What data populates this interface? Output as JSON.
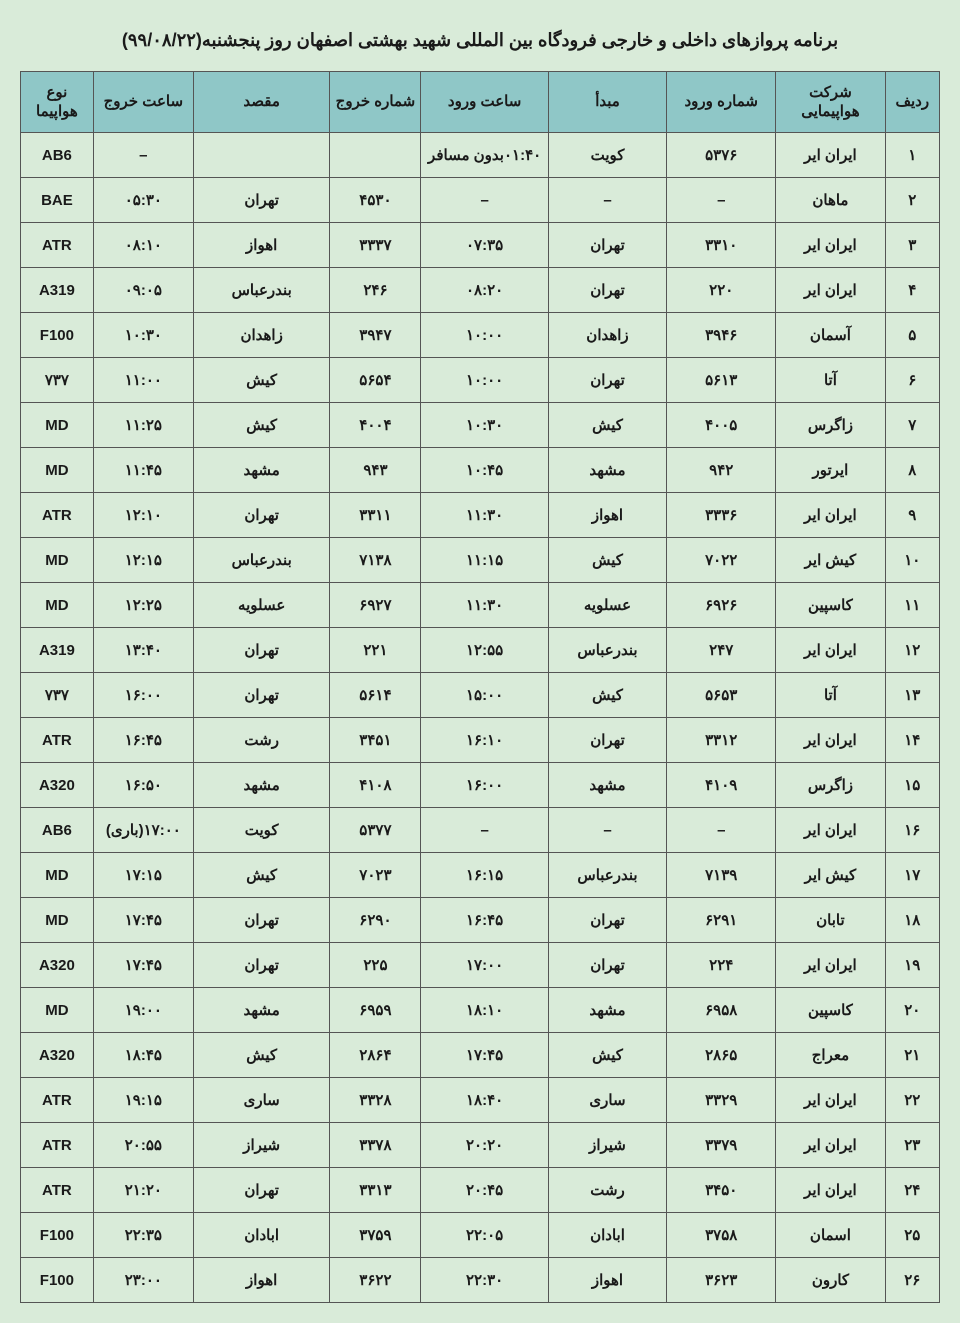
{
  "title": "برنامه پروازهای داخلی و خارجی فرودگاه بین المللی شهید بهشتی اصفهان روز پنجشنبه(۹۹/۰۸/۲۲)",
  "headers": {
    "row": "ردیف",
    "airline": "شرکت هواپیمایی",
    "arr_num": "شماره ورود",
    "origin": "مبدأ",
    "arr_time": "ساعت ورود",
    "dep_num": "شماره خروج",
    "dest": "مقصد",
    "dep_time": "ساعت خروج",
    "type": "نوع هواپیما"
  },
  "styling": {
    "page_bg": "#d9ebd9",
    "header_bg": "#8fc7c7",
    "cell_bg": "#d9ebd9",
    "border_color": "#555555",
    "text_color": "#1a1a1a",
    "title_fontsize": 18,
    "cell_fontsize": 15,
    "font_family": "Tahoma"
  },
  "rows": [
    {
      "n": "۱",
      "airline": "ایران ایر",
      "arr_num": "۵۳۷۶",
      "origin": "کویت",
      "arr_time": "۰۱:۴۰بدون مسافر",
      "dep_num": "",
      "dest": "",
      "dep_time": "–",
      "type": "AB6"
    },
    {
      "n": "۲",
      "airline": "ماهان",
      "arr_num": "–",
      "origin": "–",
      "arr_time": "–",
      "dep_num": "۴۵۳۰",
      "dest": "تهران",
      "dep_time": "۰۵:۳۰",
      "type": "BAE"
    },
    {
      "n": "۳",
      "airline": "ایران ایر",
      "arr_num": "۳۳۱۰",
      "origin": "تهران",
      "arr_time": "۰۷:۳۵",
      "dep_num": "۳۳۳۷",
      "dest": "اهواز",
      "dep_time": "۰۸:۱۰",
      "type": "ATR"
    },
    {
      "n": "۴",
      "airline": "ایران ایر",
      "arr_num": "۲۲۰",
      "origin": "تهران",
      "arr_time": "۰۸:۲۰",
      "dep_num": "۲۴۶",
      "dest": "بندرعباس",
      "dep_time": "۰۹:۰۵",
      "type": "A319"
    },
    {
      "n": "۵",
      "airline": "آسمان",
      "arr_num": "۳۹۴۶",
      "origin": "زاهدان",
      "arr_time": "۱۰:۰۰",
      "dep_num": "۳۹۴۷",
      "dest": "زاهدان",
      "dep_time": "۱۰:۳۰",
      "type": "F100"
    },
    {
      "n": "۶",
      "airline": "آتا",
      "arr_num": "۵۶۱۳",
      "origin": "تهران",
      "arr_time": "۱۰:۰۰",
      "dep_num": "۵۶۵۴",
      "dest": "کیش",
      "dep_time": "۱۱:۰۰",
      "type": "۷۳۷"
    },
    {
      "n": "۷",
      "airline": "زاگرس",
      "arr_num": "۴۰۰۵",
      "origin": "کیش",
      "arr_time": "۱۰:۳۰",
      "dep_num": "۴۰۰۴",
      "dest": "کیش",
      "dep_time": "۱۱:۲۵",
      "type": "MD"
    },
    {
      "n": "۸",
      "airline": "ایرتور",
      "arr_num": "۹۴۲",
      "origin": "مشهد",
      "arr_time": "۱۰:۴۵",
      "dep_num": "۹۴۳",
      "dest": "مشهد",
      "dep_time": "۱۱:۴۵",
      "type": "MD"
    },
    {
      "n": "۹",
      "airline": "ایران ایر",
      "arr_num": "۳۳۳۶",
      "origin": "اهواز",
      "arr_time": "۱۱:۳۰",
      "dep_num": "۳۳۱۱",
      "dest": "تهران",
      "dep_time": "۱۲:۱۰",
      "type": "ATR"
    },
    {
      "n": "۱۰",
      "airline": "کیش ایر",
      "arr_num": "۷۰۲۲",
      "origin": "کیش",
      "arr_time": "۱۱:۱۵",
      "dep_num": "۷۱۳۸",
      "dest": "بندرعباس",
      "dep_time": "۱۲:۱۵",
      "type": "MD"
    },
    {
      "n": "۱۱",
      "airline": "کاسپین",
      "arr_num": "۶۹۲۶",
      "origin": "عسلویه",
      "arr_time": "۱۱:۳۰",
      "dep_num": "۶۹۲۷",
      "dest": "عسلویه",
      "dep_time": "۱۲:۲۵",
      "type": "MD"
    },
    {
      "n": "۱۲",
      "airline": "ایران ایر",
      "arr_num": "۲۴۷",
      "origin": "بندرعباس",
      "arr_time": "۱۲:۵۵",
      "dep_num": "۲۲۱",
      "dest": "تهران",
      "dep_time": "۱۳:۴۰",
      "type": "A319"
    },
    {
      "n": "۱۳",
      "airline": "آتا",
      "arr_num": "۵۶۵۳",
      "origin": "کیش",
      "arr_time": "۱۵:۰۰",
      "dep_num": "۵۶۱۴",
      "dest": "تهران",
      "dep_time": "۱۶:۰۰",
      "type": "۷۳۷"
    },
    {
      "n": "۱۴",
      "airline": "ایران ایر",
      "arr_num": "۳۳۱۲",
      "origin": "تهران",
      "arr_time": "۱۶:۱۰",
      "dep_num": "۳۴۵۱",
      "dest": "رشت",
      "dep_time": "۱۶:۴۵",
      "type": "ATR"
    },
    {
      "n": "۱۵",
      "airline": "زاگرس",
      "arr_num": "۴۱۰۹",
      "origin": "مشهد",
      "arr_time": "۱۶:۰۰",
      "dep_num": "۴۱۰۸",
      "dest": "مشهد",
      "dep_time": "۱۶:۵۰",
      "type": "A320"
    },
    {
      "n": "۱۶",
      "airline": "ایران ایر",
      "arr_num": "–",
      "origin": "–",
      "arr_time": "–",
      "dep_num": "۵۳۷۷",
      "dest": "کویت",
      "dep_time": "۱۷:۰۰(باری)",
      "type": "AB6"
    },
    {
      "n": "۱۷",
      "airline": "کیش ایر",
      "arr_num": "۷۱۳۹",
      "origin": "بندرعباس",
      "arr_time": "۱۶:۱۵",
      "dep_num": "۷۰۲۳",
      "dest": "کیش",
      "dep_time": "۱۷:۱۵",
      "type": "MD"
    },
    {
      "n": "۱۸",
      "airline": "تابان",
      "arr_num": "۶۲۹۱",
      "origin": "تهران",
      "arr_time": "۱۶:۴۵",
      "dep_num": "۶۲۹۰",
      "dest": "تهران",
      "dep_time": "۱۷:۴۵",
      "type": "MD"
    },
    {
      "n": "۱۹",
      "airline": "ایران ایر",
      "arr_num": "۲۲۴",
      "origin": "تهران",
      "arr_time": "۱۷:۰۰",
      "dep_num": "۲۲۵",
      "dest": "تهران",
      "dep_time": "۱۷:۴۵",
      "type": "A320"
    },
    {
      "n": "۲۰",
      "airline": "کاسپین",
      "arr_num": "۶۹۵۸",
      "origin": "مشهد",
      "arr_time": "۱۸:۱۰",
      "dep_num": "۶۹۵۹",
      "dest": "مشهد",
      "dep_time": "۱۹:۰۰",
      "type": "MD"
    },
    {
      "n": "۲۱",
      "airline": "معراج",
      "arr_num": "۲۸۶۵",
      "origin": "کیش",
      "arr_time": "۱۷:۴۵",
      "dep_num": "۲۸۶۴",
      "dest": "کیش",
      "dep_time": "۱۸:۴۵",
      "type": "A320"
    },
    {
      "n": "۲۲",
      "airline": "ایران ایر",
      "arr_num": "۳۳۲۹",
      "origin": "ساری",
      "arr_time": "۱۸:۴۰",
      "dep_num": "۳۳۲۸",
      "dest": "ساری",
      "dep_time": "۱۹:۱۵",
      "type": "ATR"
    },
    {
      "n": "۲۳",
      "airline": "ایران ایر",
      "arr_num": "۳۳۷۹",
      "origin": "شیراز",
      "arr_time": "۲۰:۲۰",
      "dep_num": "۳۳۷۸",
      "dest": "شیراز",
      "dep_time": "۲۰:۵۵",
      "type": "ATR"
    },
    {
      "n": "۲۴",
      "airline": "ایران ایر",
      "arr_num": "۳۴۵۰",
      "origin": "رشت",
      "arr_time": "۲۰:۴۵",
      "dep_num": "۳۳۱۳",
      "dest": "تهران",
      "dep_time": "۲۱:۲۰",
      "type": "ATR"
    },
    {
      "n": "۲۵",
      "airline": "اسمان",
      "arr_num": "۳۷۵۸",
      "origin": "ابادان",
      "arr_time": "۲۲:۰۵",
      "dep_num": "۳۷۵۹",
      "dest": "ابادان",
      "dep_time": "۲۲:۳۵",
      "type": "F100"
    },
    {
      "n": "۲۶",
      "airline": "کارون",
      "arr_num": "۳۶۲۳",
      "origin": "اهواز",
      "arr_time": "۲۲:۳۰",
      "dep_num": "۳۶۲۲",
      "dest": "اهواز",
      "dep_time": "۲۳:۰۰",
      "type": "F100"
    }
  ]
}
